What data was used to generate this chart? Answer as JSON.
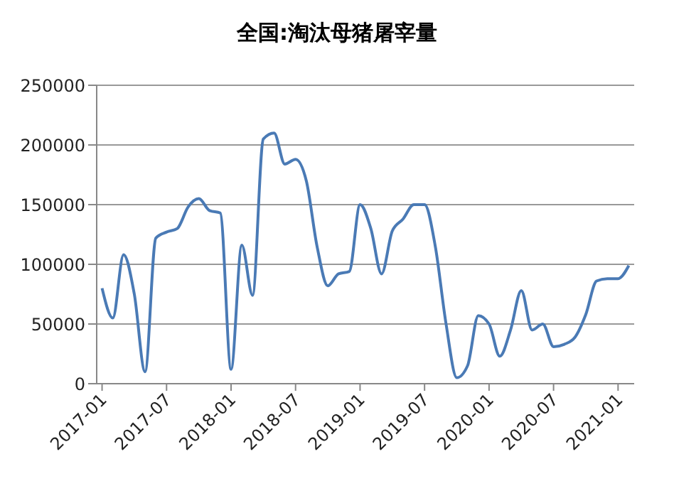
{
  "chart_data": {
    "type": "line",
    "title": "全国:淘汰母猪屠宰量",
    "categories": [
      "2017-01",
      null,
      null,
      null,
      null,
      null,
      "2017-07",
      null,
      null,
      null,
      null,
      null,
      "2018-01",
      null,
      null,
      null,
      null,
      null,
      "2018-07",
      null,
      null,
      null,
      null,
      null,
      "2019-01",
      null,
      null,
      null,
      null,
      null,
      "2019-07",
      null,
      null,
      null,
      null,
      null,
      "2020-01",
      null,
      null,
      null,
      null,
      null,
      "2020-07",
      null,
      null,
      null,
      null,
      null,
      "2021-01",
      null
    ],
    "series": [
      {
        "color": "#4a7ab5",
        "values": [
          80000,
          55000,
          108000,
          75000,
          10000,
          122000,
          127000,
          130000,
          148000,
          155000,
          145000,
          143000,
          12000,
          116000,
          74000,
          205000,
          210000,
          184000,
          188000,
          170000,
          115000,
          82000,
          92000,
          94000,
          150000,
          130000,
          92000,
          128000,
          138000,
          150000,
          150000,
          115000,
          50000,
          5000,
          15000,
          57000,
          50000,
          23000,
          45000,
          78000,
          45000,
          50000,
          31000,
          33000,
          39000,
          58000,
          86000,
          88000,
          88000,
          99000
        ]
      }
    ],
    "ylim": [
      0,
      250000
    ],
    "yticks": [
      0,
      50000,
      100000,
      150000,
      200000,
      250000
    ],
    "grid": "y",
    "legend": false,
    "marker": "none",
    "line_style": "solid"
  }
}
